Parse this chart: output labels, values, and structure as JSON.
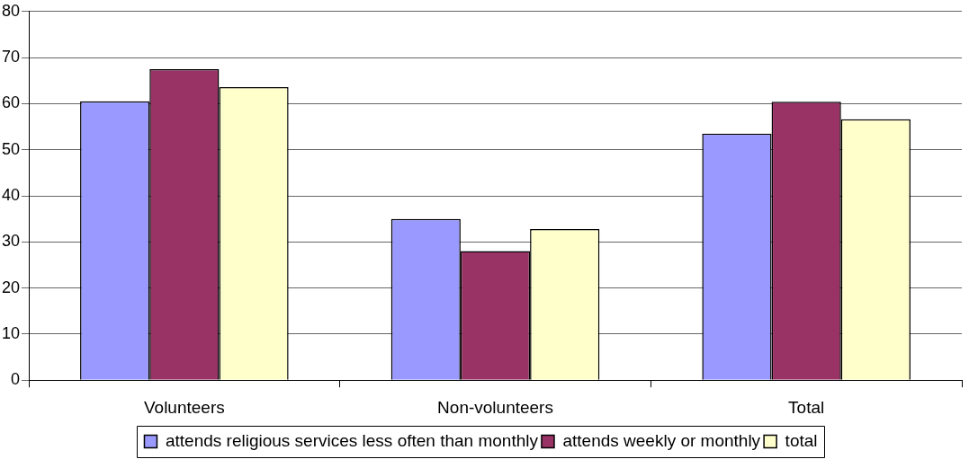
{
  "chart_data": {
    "type": "bar",
    "categories": [
      "Volunteers",
      "Non-volunteers",
      "Total"
    ],
    "series": [
      {
        "name": "attends religious services less often than monthly",
        "color": "#9999ff",
        "values": [
          60.5,
          35.0,
          53.5
        ]
      },
      {
        "name": "attends weekly or monthly",
        "color": "#993366",
        "values": [
          67.5,
          28.0,
          60.4
        ]
      },
      {
        "name": "total",
        "color": "#ffffcc",
        "values": [
          63.6,
          32.8,
          56.6
        ]
      }
    ],
    "ylim": [
      0,
      80
    ],
    "yticks": [
      0,
      10,
      20,
      30,
      40,
      50,
      60,
      70,
      80
    ],
    "grid": "y",
    "legend": "bottom"
  }
}
